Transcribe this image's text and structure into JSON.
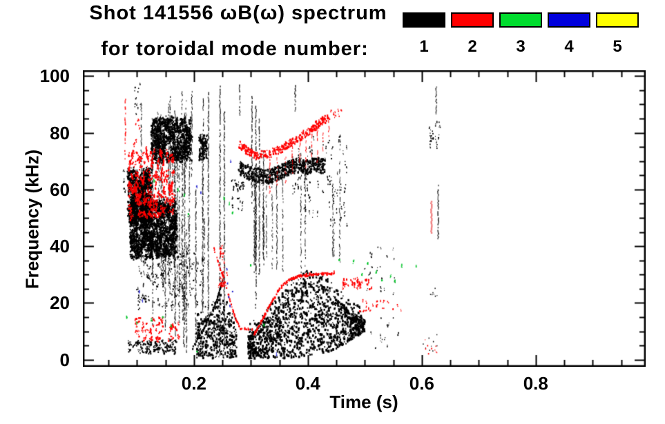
{
  "header": {
    "title_line1": "Shot 141556 ωB(ω) spectrum",
    "title_line2": "for toroidal mode number:"
  },
  "legend": {
    "items": [
      {
        "label": "1",
        "color": "#000000"
      },
      {
        "label": "2",
        "color": "#ff0000"
      },
      {
        "label": "3",
        "color": "#00dd2e"
      },
      {
        "label": "4",
        "color": "#0000dd"
      },
      {
        "label": "5",
        "color": "#ffff00"
      }
    ]
  },
  "axes": {
    "x_label": "Time (s)",
    "y_label": "Frequency (kHz)",
    "x_tick_values": [
      0.2,
      0.4,
      0.6,
      0.8
    ],
    "x_tick_labels": [
      "0.2",
      "0.4",
      "0.6",
      "0.8"
    ],
    "x_minor_step": 0.05,
    "x_minor_range": [
      0.05,
      0.95
    ],
    "y_tick_values": [
      0,
      20,
      40,
      60,
      80,
      100
    ],
    "y_tick_labels": [
      "0",
      "20",
      "40",
      "60",
      "80",
      "100"
    ],
    "y_minor_step": 5,
    "xlim": [
      0.005,
      0.993
    ],
    "ylim": [
      0,
      100
    ]
  },
  "chart_data": {
    "type": "scatter",
    "title": "Shot 141556 ωB(ω) spectrum for toroidal mode number:",
    "xlabel": "Time (s)",
    "ylabel": "Frequency (kHz)",
    "xlim": [
      0.005,
      0.993
    ],
    "ylim": [
      0,
      100
    ],
    "grid": false,
    "legend_position": "top-outside",
    "modes": [
      {
        "n": 1,
        "color": "#000000"
      },
      {
        "n": 2,
        "color": "#ff0000"
      },
      {
        "n": 3,
        "color": "#00c428"
      },
      {
        "n": 4,
        "color": "#2222cc"
      },
      {
        "n": 5,
        "color": "#ffff00"
      }
    ],
    "features": [
      {
        "m": 1,
        "type": "cloud",
        "t": [
          0.085,
          0.125
        ],
        "f": [
          48,
          67
        ],
        "n": 420,
        "k": 4,
        "sp": [
          0.003,
          1.3
        ],
        "s": 1.6
      },
      {
        "m": 1,
        "type": "cloud",
        "t": [
          0.088,
          0.17
        ],
        "f": [
          36,
          56
        ],
        "n": 640,
        "k": 5,
        "sp": [
          0.0035,
          1.4
        ],
        "s": 1.6
      },
      {
        "m": 1,
        "type": "cloud",
        "t": [
          0.1,
          0.215
        ],
        "f": [
          18,
          38
        ],
        "n": 110,
        "k": 3,
        "sp": [
          0.0025,
          1.6
        ],
        "s": 1.3
      },
      {
        "m": 1,
        "type": "cloud",
        "t": [
          0.085,
          0.168
        ],
        "f": [
          2,
          7
        ],
        "n": 60,
        "k": 4,
        "sp": [
          0.0035,
          1.0
        ],
        "s": 1.5
      },
      {
        "m": 1,
        "type": "cloud",
        "t": [
          0.125,
          0.195
        ],
        "f": [
          70,
          85
        ],
        "n": 360,
        "k": 5,
        "sp": [
          0.003,
          1.7
        ],
        "s": 1.6
      },
      {
        "m": 1,
        "type": "cloud",
        "t": [
          0.076,
          0.088
        ],
        "f": [
          58,
          67
        ],
        "n": 16,
        "k": 3,
        "sp": [
          0.002,
          1.0
        ],
        "s": 1.4
      },
      {
        "m": 1,
        "type": "cloud",
        "t": [
          0.095,
          0.107
        ],
        "f": [
          85,
          97
        ],
        "n": 12,
        "k": 2,
        "sp": [
          0.0015,
          1.2
        ],
        "s": 1.2
      },
      {
        "m": 1,
        "type": "cloud",
        "t": [
          0.209,
          0.223
        ],
        "f": [
          71,
          80
        ],
        "n": 64,
        "k": 3,
        "sp": [
          0.0018,
          1.1
        ],
        "s": 1.5
      },
      {
        "m": 1,
        "type": "cloud",
        "t": [
          0.262,
          0.288
        ],
        "f": [
          52,
          63
        ],
        "n": 22,
        "k": 3,
        "sp": [
          0.002,
          1.2
        ],
        "s": 1.3
      },
      {
        "m": 1,
        "type": "band",
        "pts": [
          [
            0.28,
            67.5
          ],
          [
            0.3,
            65.8
          ],
          [
            0.32,
            64.5
          ],
          [
            0.335,
            64.8
          ],
          [
            0.35,
            66
          ],
          [
            0.365,
            67.5
          ],
          [
            0.38,
            68.5
          ],
          [
            0.4,
            68
          ],
          [
            0.415,
            68.8
          ],
          [
            0.43,
            68
          ]
        ],
        "hw": 2.6,
        "n": 780,
        "s": 1.7
      },
      {
        "m": 1,
        "type": "line",
        "pts": [
          [
            0.197,
            4
          ],
          [
            0.22,
            12
          ],
          [
            0.24,
            21
          ],
          [
            0.252,
            29
          ]
        ],
        "n": 110,
        "j": [
          0.0012,
          0.8
        ],
        "s": 1.6
      },
      {
        "m": 1,
        "type": "envelope",
        "xs": [
          0.205,
          0.225,
          0.245,
          0.26,
          0.275
        ],
        "lo": [
          0.5,
          0.5,
          0.5,
          0.5,
          0.5
        ],
        "hi": [
          12,
          16,
          20,
          16,
          10
        ],
        "n": 480,
        "s": 1.8
      },
      {
        "m": 1,
        "type": "envelope",
        "xs": [
          0.295,
          0.31,
          0.33,
          0.35,
          0.37,
          0.39,
          0.41,
          0.43,
          0.45,
          0.47,
          0.485,
          0.5
        ],
        "lo": [
          0.5,
          0.5,
          0.5,
          0.5,
          0.8,
          1,
          2,
          2,
          4,
          6,
          8,
          10
        ],
        "hi": [
          8,
          11,
          15,
          19,
          24,
          27,
          28,
          26,
          22,
          18,
          16,
          14
        ],
        "n": 1600,
        "s": 1.9
      },
      {
        "m": 1,
        "type": "cloud",
        "t": [
          0.37,
          0.47
        ],
        "f": [
          48,
          78
        ],
        "n": 70,
        "k": 3,
        "sp": [
          0.0015,
          2.2
        ],
        "s": 1.2
      },
      {
        "m": 1,
        "type": "cloud",
        "t": [
          0.5,
          0.555
        ],
        "f": [
          22,
          41
        ],
        "n": 22,
        "k": 2,
        "sp": [
          0.002,
          1.0
        ],
        "s": 1.2
      },
      {
        "m": 1,
        "type": "cloud",
        "t": [
          0.5,
          0.56
        ],
        "f": [
          4,
          16
        ],
        "n": 14,
        "k": 2,
        "sp": [
          0.002,
          1.0
        ],
        "s": 1.2
      },
      {
        "m": 1,
        "type": "vstreaks",
        "t": [
          0.098,
          0.228
        ],
        "c": 24,
        "f0": [
          6,
          38
        ],
        "f1": [
          44,
          96
        ],
        "s": 1.2
      },
      {
        "m": 1,
        "type": "vstreaks",
        "t": [
          0.13,
          0.2
        ],
        "c": 8,
        "f0": [
          55,
          72
        ],
        "f1": [
          80,
          97
        ],
        "s": 1.1
      },
      {
        "m": 1,
        "type": "vstreaks",
        "t": [
          0.3,
          0.465
        ],
        "c": 16,
        "f0": [
          28,
          40
        ],
        "f1": [
          45,
          80
        ],
        "s": 1.1
      },
      {
        "m": 1,
        "type": "streaks",
        "list": [
          [
            0.2025,
            5,
            60
          ],
          [
            0.2245,
            8,
            95
          ],
          [
            0.245,
            2,
            97
          ],
          [
            0.2525,
            5,
            88
          ],
          [
            0.186,
            3,
            46
          ],
          [
            0.1815,
            5,
            40
          ],
          [
            0.301,
            55,
            93
          ],
          [
            0.308,
            18,
            90
          ],
          [
            0.314,
            30,
            85
          ],
          [
            0.377,
            88,
            97
          ],
          [
            0.2795,
            86,
            97
          ],
          [
            0.628,
            43,
            62
          ],
          [
            0.6245,
            87,
            97
          ]
        ],
        "s": 1.4
      },
      {
        "m": 1,
        "type": "cloud",
        "t": [
          0.613,
          0.632
        ],
        "f": [
          75,
          85
        ],
        "n": 20,
        "k": 2,
        "sp": [
          0.0012,
          1.5
        ],
        "s": 1.3
      },
      {
        "m": 1,
        "type": "cloud",
        "t": [
          0.6,
          0.632
        ],
        "f": [
          20,
          26
        ],
        "n": 7,
        "k": 1,
        "sp": [
          0.001,
          1.0
        ],
        "s": 1.2
      },
      {
        "m": 1,
        "type": "cloud",
        "t": [
          0.598,
          0.63
        ],
        "f": [
          2,
          9
        ],
        "n": 9,
        "k": 1,
        "sp": [
          0.001,
          1.0
        ],
        "s": 1.2
      },
      {
        "m": 2,
        "type": "cloud",
        "t": [
          0.085,
          0.165
        ],
        "f": [
          50,
          74
        ],
        "n": 230,
        "k": 4,
        "sp": [
          0.0028,
          1.6
        ],
        "s": 1.6
      },
      {
        "m": 2,
        "type": "streaks",
        "list": [
          [
            0.0785,
            70,
            92
          ]
        ],
        "s": 1.6,
        "p": 0.6
      },
      {
        "m": 2,
        "type": "cloud",
        "t": [
          0.093,
          0.108
        ],
        "f": [
          75,
          85
        ],
        "n": 9,
        "k": 2,
        "sp": [
          0.0015,
          1.0
        ],
        "s": 1.3
      },
      {
        "m": 2,
        "type": "cloud",
        "t": [
          0.096,
          0.146
        ],
        "f": [
          7,
          15
        ],
        "n": 46,
        "k": 3,
        "sp": [
          0.0025,
          1.0
        ],
        "s": 1.5
      },
      {
        "m": 2,
        "type": "cloud",
        "t": [
          0.155,
          0.175
        ],
        "f": [
          7,
          13
        ],
        "n": 16,
        "k": 3,
        "sp": [
          0.002,
          1.0
        ],
        "s": 1.5
      },
      {
        "m": 2,
        "type": "cloud",
        "t": [
          0.243,
          0.258
        ],
        "f": [
          25,
          40
        ],
        "n": 22,
        "k": 3,
        "sp": [
          0.0018,
          1.6
        ],
        "s": 1.4
      },
      {
        "m": 2,
        "type": "line",
        "pts": [
          [
            0.235,
            39
          ],
          [
            0.25,
            30
          ],
          [
            0.262,
            22
          ],
          [
            0.272,
            15
          ],
          [
            0.282,
            11
          ],
          [
            0.305,
            10.5
          ]
        ],
        "n": 90,
        "j": [
          0.001,
          0.6
        ],
        "s": 1.6
      },
      {
        "m": 2,
        "type": "line",
        "pts": [
          [
            0.306,
            9
          ],
          [
            0.32,
            14
          ],
          [
            0.335,
            20
          ],
          [
            0.35,
            25
          ],
          [
            0.365,
            28
          ],
          [
            0.385,
            29.5
          ],
          [
            0.405,
            30
          ],
          [
            0.425,
            30.3
          ],
          [
            0.447,
            30.5
          ]
        ],
        "n": 200,
        "j": [
          0.0012,
          0.8
        ],
        "s": 1.8
      },
      {
        "m": 2,
        "type": "cloud",
        "t": [
          0.46,
          0.515
        ],
        "f": [
          25,
          29
        ],
        "n": 34,
        "k": 3,
        "sp": [
          0.002,
          0.7
        ],
        "s": 1.5
      },
      {
        "m": 2,
        "type": "cloud",
        "t": [
          0.49,
          0.565
        ],
        "f": [
          17,
          21
        ],
        "n": 22,
        "k": 2,
        "sp": [
          0.002,
          0.7
        ],
        "s": 1.4
      },
      {
        "m": 2,
        "type": "band",
        "pts": [
          [
            0.28,
            76
          ],
          [
            0.295,
            73.5
          ],
          [
            0.31,
            72
          ],
          [
            0.33,
            72.5
          ],
          [
            0.35,
            74
          ],
          [
            0.37,
            76.5
          ],
          [
            0.39,
            79
          ],
          [
            0.405,
            81
          ],
          [
            0.42,
            83.5
          ],
          [
            0.437,
            85.5
          ]
        ],
        "hw": 1.4,
        "n": 380,
        "s": 1.7
      },
      {
        "m": 2,
        "type": "streaks",
        "list": [
          [
            0.332,
            58,
            71
          ],
          [
            0.345,
            62,
            72
          ],
          [
            0.36,
            60,
            74
          ],
          [
            0.372,
            65,
            76
          ],
          [
            0.385,
            70,
            78
          ],
          [
            0.396,
            68,
            79
          ],
          [
            0.406,
            72,
            80
          ],
          [
            0.416,
            70,
            82
          ],
          [
            0.426,
            74,
            83
          ],
          [
            0.436,
            78,
            85
          ]
        ],
        "s": 1.2,
        "p": 0.55
      },
      {
        "m": 2,
        "type": "cloud",
        "t": [
          0.44,
          0.462
        ],
        "f": [
          84,
          88
        ],
        "n": 9,
        "k": 2,
        "sp": [
          0.0015,
          1.0
        ],
        "s": 1.3
      },
      {
        "m": 2,
        "type": "cloud",
        "t": [
          0.6,
          0.632
        ],
        "f": [
          2,
          8
        ],
        "n": 9,
        "k": 1,
        "sp": [
          0.001,
          1.0
        ],
        "s": 1.3
      },
      {
        "m": 2,
        "type": "streaks",
        "color": "#f08080",
        "list": [
          [
            0.6155,
            45,
            56
          ]
        ],
        "s": 2.4,
        "p": 1,
        "solid": true
      },
      {
        "m": 3,
        "type": "specks",
        "list": [
          [
            0.082,
            15
          ],
          [
            0.1,
            13
          ],
          [
            0.125,
            14
          ],
          [
            0.145,
            15
          ],
          [
            0.16,
            12
          ],
          [
            0.13,
            63
          ],
          [
            0.172,
            60
          ],
          [
            0.183,
            58
          ],
          [
            0.19,
            51
          ],
          [
            0.205,
            3
          ],
          [
            0.253,
            57
          ],
          [
            0.262,
            55
          ],
          [
            0.268,
            52
          ],
          [
            0.3,
            33
          ],
          [
            0.323,
            12
          ],
          [
            0.455,
            35
          ],
          [
            0.48,
            34.5
          ],
          [
            0.495,
            30
          ],
          [
            0.505,
            34
          ],
          [
            0.52,
            31
          ],
          [
            0.53,
            28
          ],
          [
            0.545,
            29.5
          ],
          [
            0.553,
            28
          ],
          [
            0.565,
            33
          ],
          [
            0.59,
            33
          ]
        ],
        "n": 5,
        "sp": [
          0.0013,
          0.8
        ],
        "s": 1.3
      },
      {
        "m": 4,
        "type": "specks",
        "list": [
          [
            0.104,
            24
          ],
          [
            0.11,
            21
          ],
          [
            0.205,
            61
          ],
          [
            0.212,
            59
          ],
          [
            0.265,
            70
          ],
          [
            0.258,
            32
          ],
          [
            0.259,
            27
          ],
          [
            0.261,
            22
          ],
          [
            0.263,
            19
          ],
          [
            0.268,
            24
          ],
          [
            0.345,
            2
          ]
        ],
        "n": 4,
        "sp": [
          0.001,
          0.8
        ],
        "s": 1.3
      }
    ]
  }
}
